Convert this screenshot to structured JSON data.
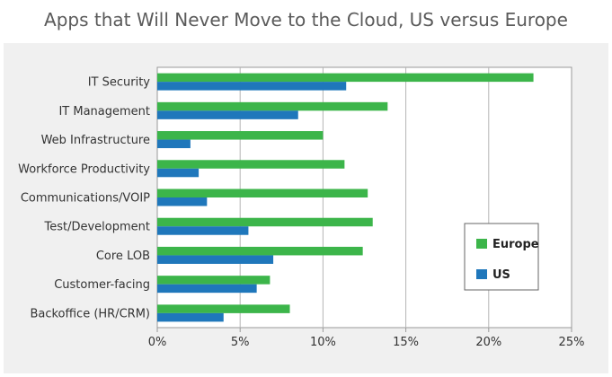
{
  "chart_data": {
    "type": "bar",
    "orientation": "horizontal",
    "title": "Apps that Will Never Move to the Cloud, US versus Europe",
    "categories": [
      "IT Security",
      "IT Management",
      "Web Infrastructure",
      "Workforce Productivity",
      "Communications/VOIP",
      "Test/Development",
      "Core LOB",
      "Customer-facing",
      "Backoffice (HR/CRM)"
    ],
    "series": [
      {
        "name": "Europe",
        "color": "#3cb54a",
        "values": [
          22.7,
          13.9,
          10.0,
          11.3,
          12.7,
          13.0,
          12.4,
          6.8,
          8.0
        ]
      },
      {
        "name": "US",
        "color": "#1f77bb",
        "values": [
          11.4,
          8.5,
          2.0,
          2.5,
          3.0,
          5.5,
          7.0,
          6.0,
          4.0
        ]
      }
    ],
    "xlim": [
      0,
      25
    ],
    "xticks": [
      0,
      5,
      10,
      15,
      20,
      25
    ],
    "xtick_labels": [
      "0%",
      "5%",
      "10%",
      "15%",
      "20%",
      "25%"
    ],
    "grid": true,
    "legend_position": "right"
  }
}
